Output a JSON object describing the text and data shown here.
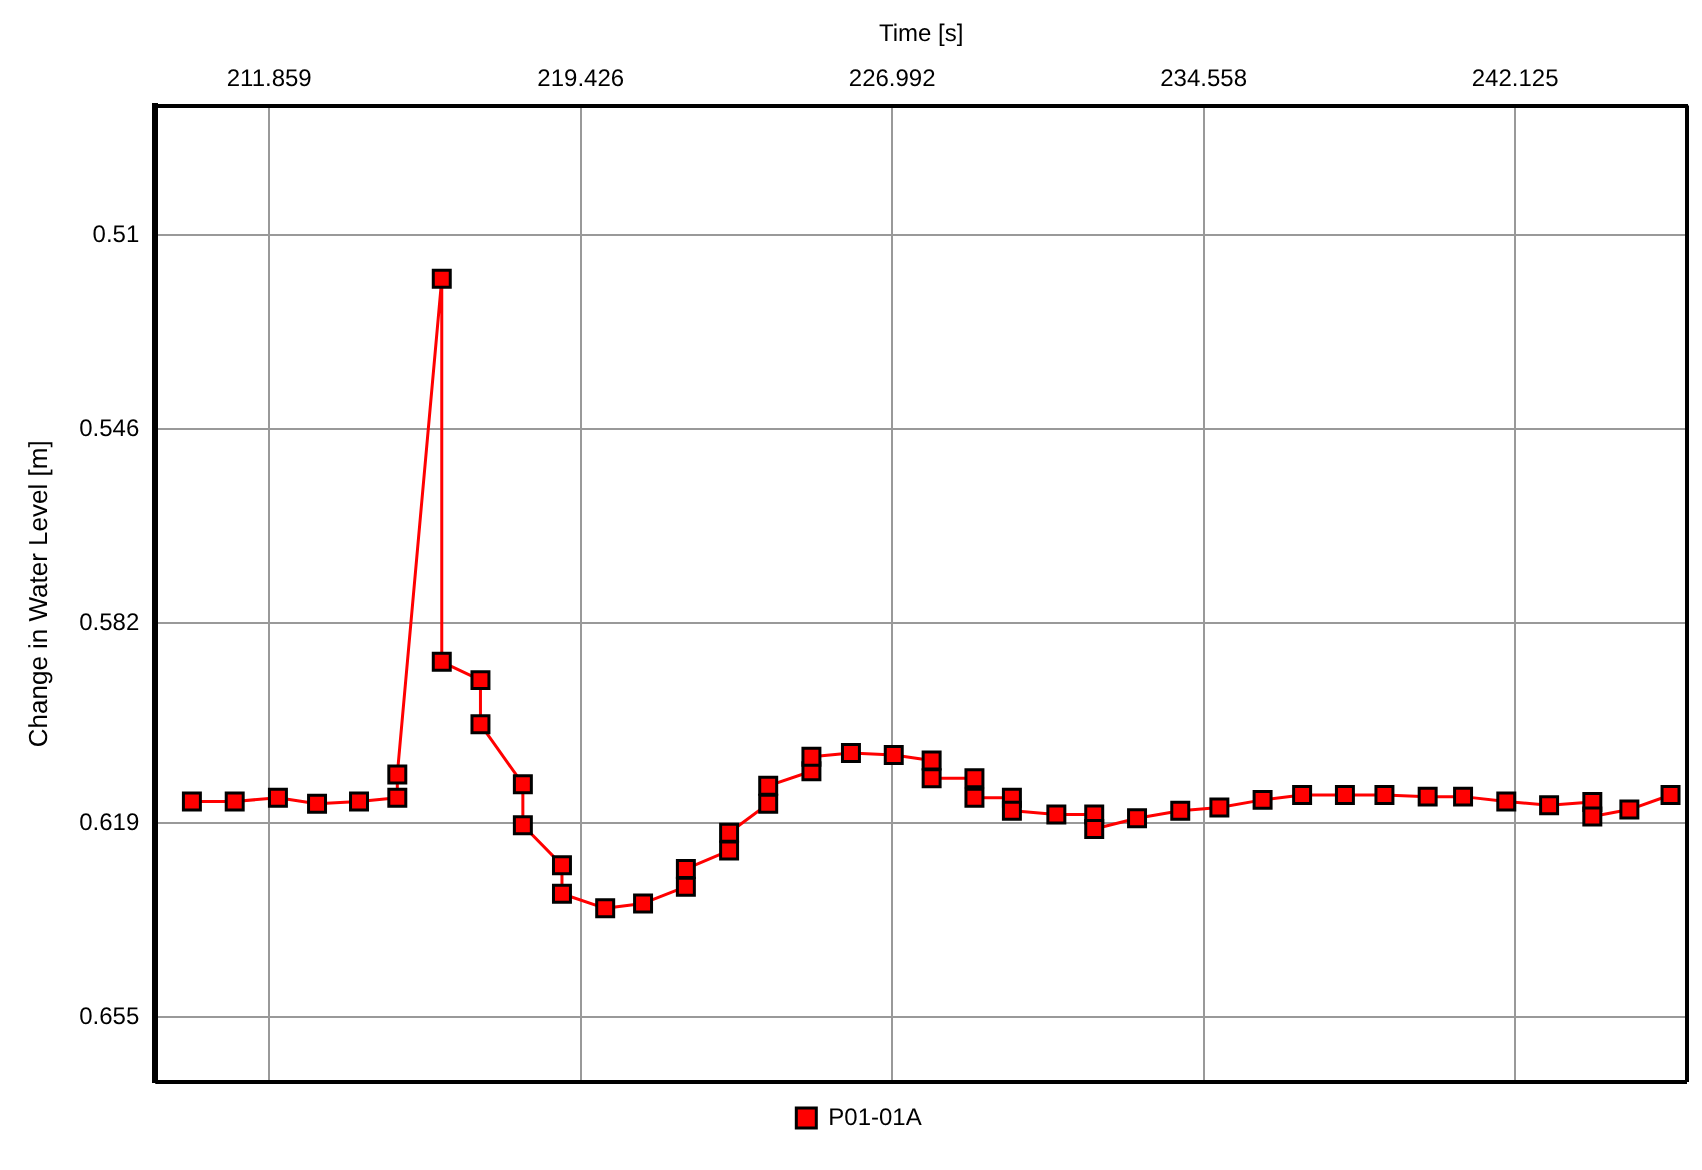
{
  "chart_data": {
    "type": "line",
    "xlabel": "Time [s]",
    "ylabel": "Change in Water Level [m]",
    "xlim": [
      209.09,
      246.3
    ],
    "xticks": [
      211.859,
      219.426,
      226.992,
      234.558,
      242.125
    ],
    "ylim": [
      0.667,
      0.486
    ],
    "yticks": [
      0.51,
      0.546,
      0.582,
      0.619,
      0.655
    ],
    "grid": true,
    "legend": "bottom",
    "marker": "square",
    "line_style": "solid",
    "x": [
      209.98,
      211.02,
      212.07,
      213.02,
      214.04,
      214.97,
      214.97,
      216.05,
      216.05,
      216.99,
      216.99,
      218.02,
      218.02,
      218.97,
      218.97,
      220.02,
      220.94,
      221.98,
      221.98,
      223.03,
      223.03,
      223.98,
      223.98,
      225.03,
      225.03,
      225.99,
      227.03,
      227.95,
      227.95,
      228.99,
      228.99,
      229.9,
      229.9,
      230.98,
      231.9,
      231.9,
      232.94,
      233.99,
      234.94,
      235.99,
      236.95,
      237.99,
      238.95,
      240.0,
      240.86,
      241.91,
      242.95,
      244.0,
      244.0,
      244.9,
      245.9
    ],
    "series": [
      {
        "name": "P01-01A",
        "color": "#ff0000",
        "values": [
          0.615,
          0.615,
          0.6143,
          0.6154,
          0.615,
          0.6143,
          0.61,
          0.5181,
          0.5891,
          0.5925,
          0.6007,
          0.6118,
          0.6194,
          0.6268,
          0.6321,
          0.6348,
          0.6339,
          0.6308,
          0.6275,
          0.6241,
          0.6208,
          0.6154,
          0.6121,
          0.6094,
          0.6067,
          0.606,
          0.6064,
          0.6074,
          0.6107,
          0.6107,
          0.6143,
          0.6143,
          0.6167,
          0.6174,
          0.6174,
          0.6201,
          0.6181,
          0.6167,
          0.6161,
          0.6147,
          0.6138,
          0.6138,
          0.6138,
          0.6141,
          0.6141,
          0.615,
          0.6157,
          0.6151,
          0.6178,
          0.6165,
          0.6138
        ]
      }
    ]
  }
}
